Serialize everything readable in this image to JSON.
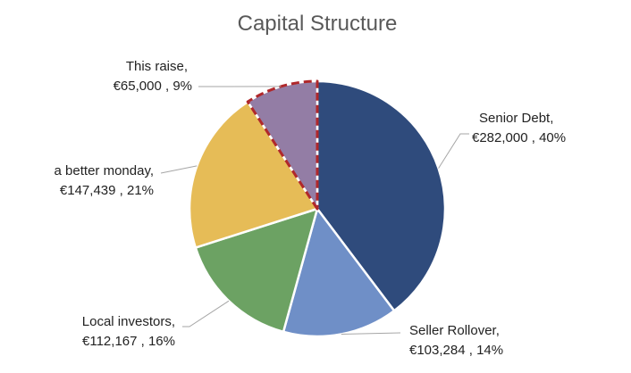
{
  "chart_data": {
    "type": "pie",
    "title": "Capital Structure",
    "start_angle_deg": 0,
    "direction": "clockwise",
    "slices": [
      {
        "name": "Senior Debt,",
        "value_label": "€282,000 , 40%",
        "value": 282000,
        "percent": 40,
        "color": "#2f4b7c",
        "highlight": false
      },
      {
        "name": "Seller Rollover,",
        "value_label": "€103,284 , 14%",
        "value": 103284,
        "percent": 14,
        "color": "#6f8fc7",
        "highlight": false
      },
      {
        "name": "Local investors,",
        "value_label": "€112,167 , 16%",
        "value": 112167,
        "percent": 16,
        "color": "#6ca263",
        "highlight": false
      },
      {
        "name": "a better monday,",
        "value_label": "€147,439 , 21%",
        "value": 147439,
        "percent": 21,
        "color": "#e6bc57",
        "highlight": false
      },
      {
        "name": "This raise,",
        "value_label": "€65,000 , 9%",
        "value": 65000,
        "percent": 9,
        "color": "#937da5",
        "highlight": true,
        "highlight_color": "#b0282b"
      }
    ]
  }
}
